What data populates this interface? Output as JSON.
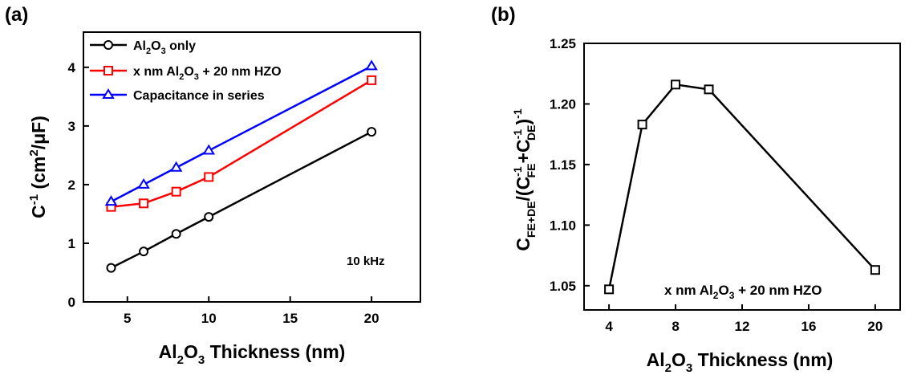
{
  "chart_data": [
    {
      "panel_label": "(a)",
      "type": "line",
      "x": [
        4,
        6,
        8,
        10,
        20
      ],
      "series": [
        {
          "name": "Al2O3 only",
          "name_parts": {
            "base": "Al",
            "s1": "2",
            "mid": "O",
            "s2": "3",
            "tail": " only"
          },
          "color": "#000000",
          "marker": "circle",
          "values": [
            0.58,
            0.86,
            1.16,
            1.45,
            2.9
          ]
        },
        {
          "name": "x nm Al2O3 + 20 nm HZO",
          "name_parts": {
            "base": "x nm Al",
            "s1": "2",
            "mid": "O",
            "s2": "3",
            "tail": " + 20 nm HZO"
          },
          "color": "#ff0000",
          "marker": "square",
          "values": [
            1.62,
            1.68,
            1.88,
            2.13,
            3.78
          ]
        },
        {
          "name": "Capacitance in series",
          "name_parts": {
            "base": "Capacitance in series",
            "s1": "",
            "mid": "",
            "s2": "",
            "tail": ""
          },
          "color": "#0000ff",
          "marker": "triangle",
          "values": [
            1.71,
            2.0,
            2.29,
            2.58,
            4.02
          ]
        }
      ],
      "xlim": [
        2.3,
        23
      ],
      "ylim": [
        0,
        4.6
      ],
      "xticks": [
        5,
        10,
        15,
        20
      ],
      "yticks": [
        0,
        1,
        2,
        3,
        4
      ],
      "xlabel_parts": {
        "base": "Al",
        "s1": "2",
        "mid": "O",
        "s2": "3",
        "tail": " Thickness (nm)"
      },
      "ylabel_parts": {
        "a": "C",
        "sup1": "-1",
        "b": " (cm",
        "sup2": "2",
        "c": "/μF)"
      },
      "annotation": "10 kHz",
      "legend_position": "top-left",
      "grid": false
    },
    {
      "panel_label": "(b)",
      "type": "line",
      "x": [
        4,
        6,
        8,
        10,
        20
      ],
      "series": [
        {
          "name": "",
          "color": "#000000",
          "marker": "square",
          "values": [
            1.047,
            1.183,
            1.216,
            1.212,
            1.063
          ]
        }
      ],
      "xlim": [
        2.5,
        21.5
      ],
      "ylim": [
        1.03,
        1.25
      ],
      "xticks": [
        4,
        8,
        12,
        16,
        20
      ],
      "yticks": [
        1.05,
        1.1,
        1.15,
        1.2,
        1.25
      ],
      "xlabel_parts": {
        "base": "Al",
        "s1": "2",
        "mid": "O",
        "s2": "3",
        "tail": " Thickness (nm)"
      },
      "ylabel_parts": {
        "a": "C",
        "sub1": "FE+DE",
        "b": "/(C",
        "sup1": "-1",
        "sub2": "FE",
        "c": "+C",
        "sup2": "-1",
        "sub3": "DE",
        "d": ")",
        "sup3": "-1"
      },
      "annotation_parts": {
        "base": "x nm Al",
        "s1": "2",
        "mid": "O",
        "s2": "3",
        "tail": " + 20 nm HZO"
      },
      "grid": false
    }
  ]
}
